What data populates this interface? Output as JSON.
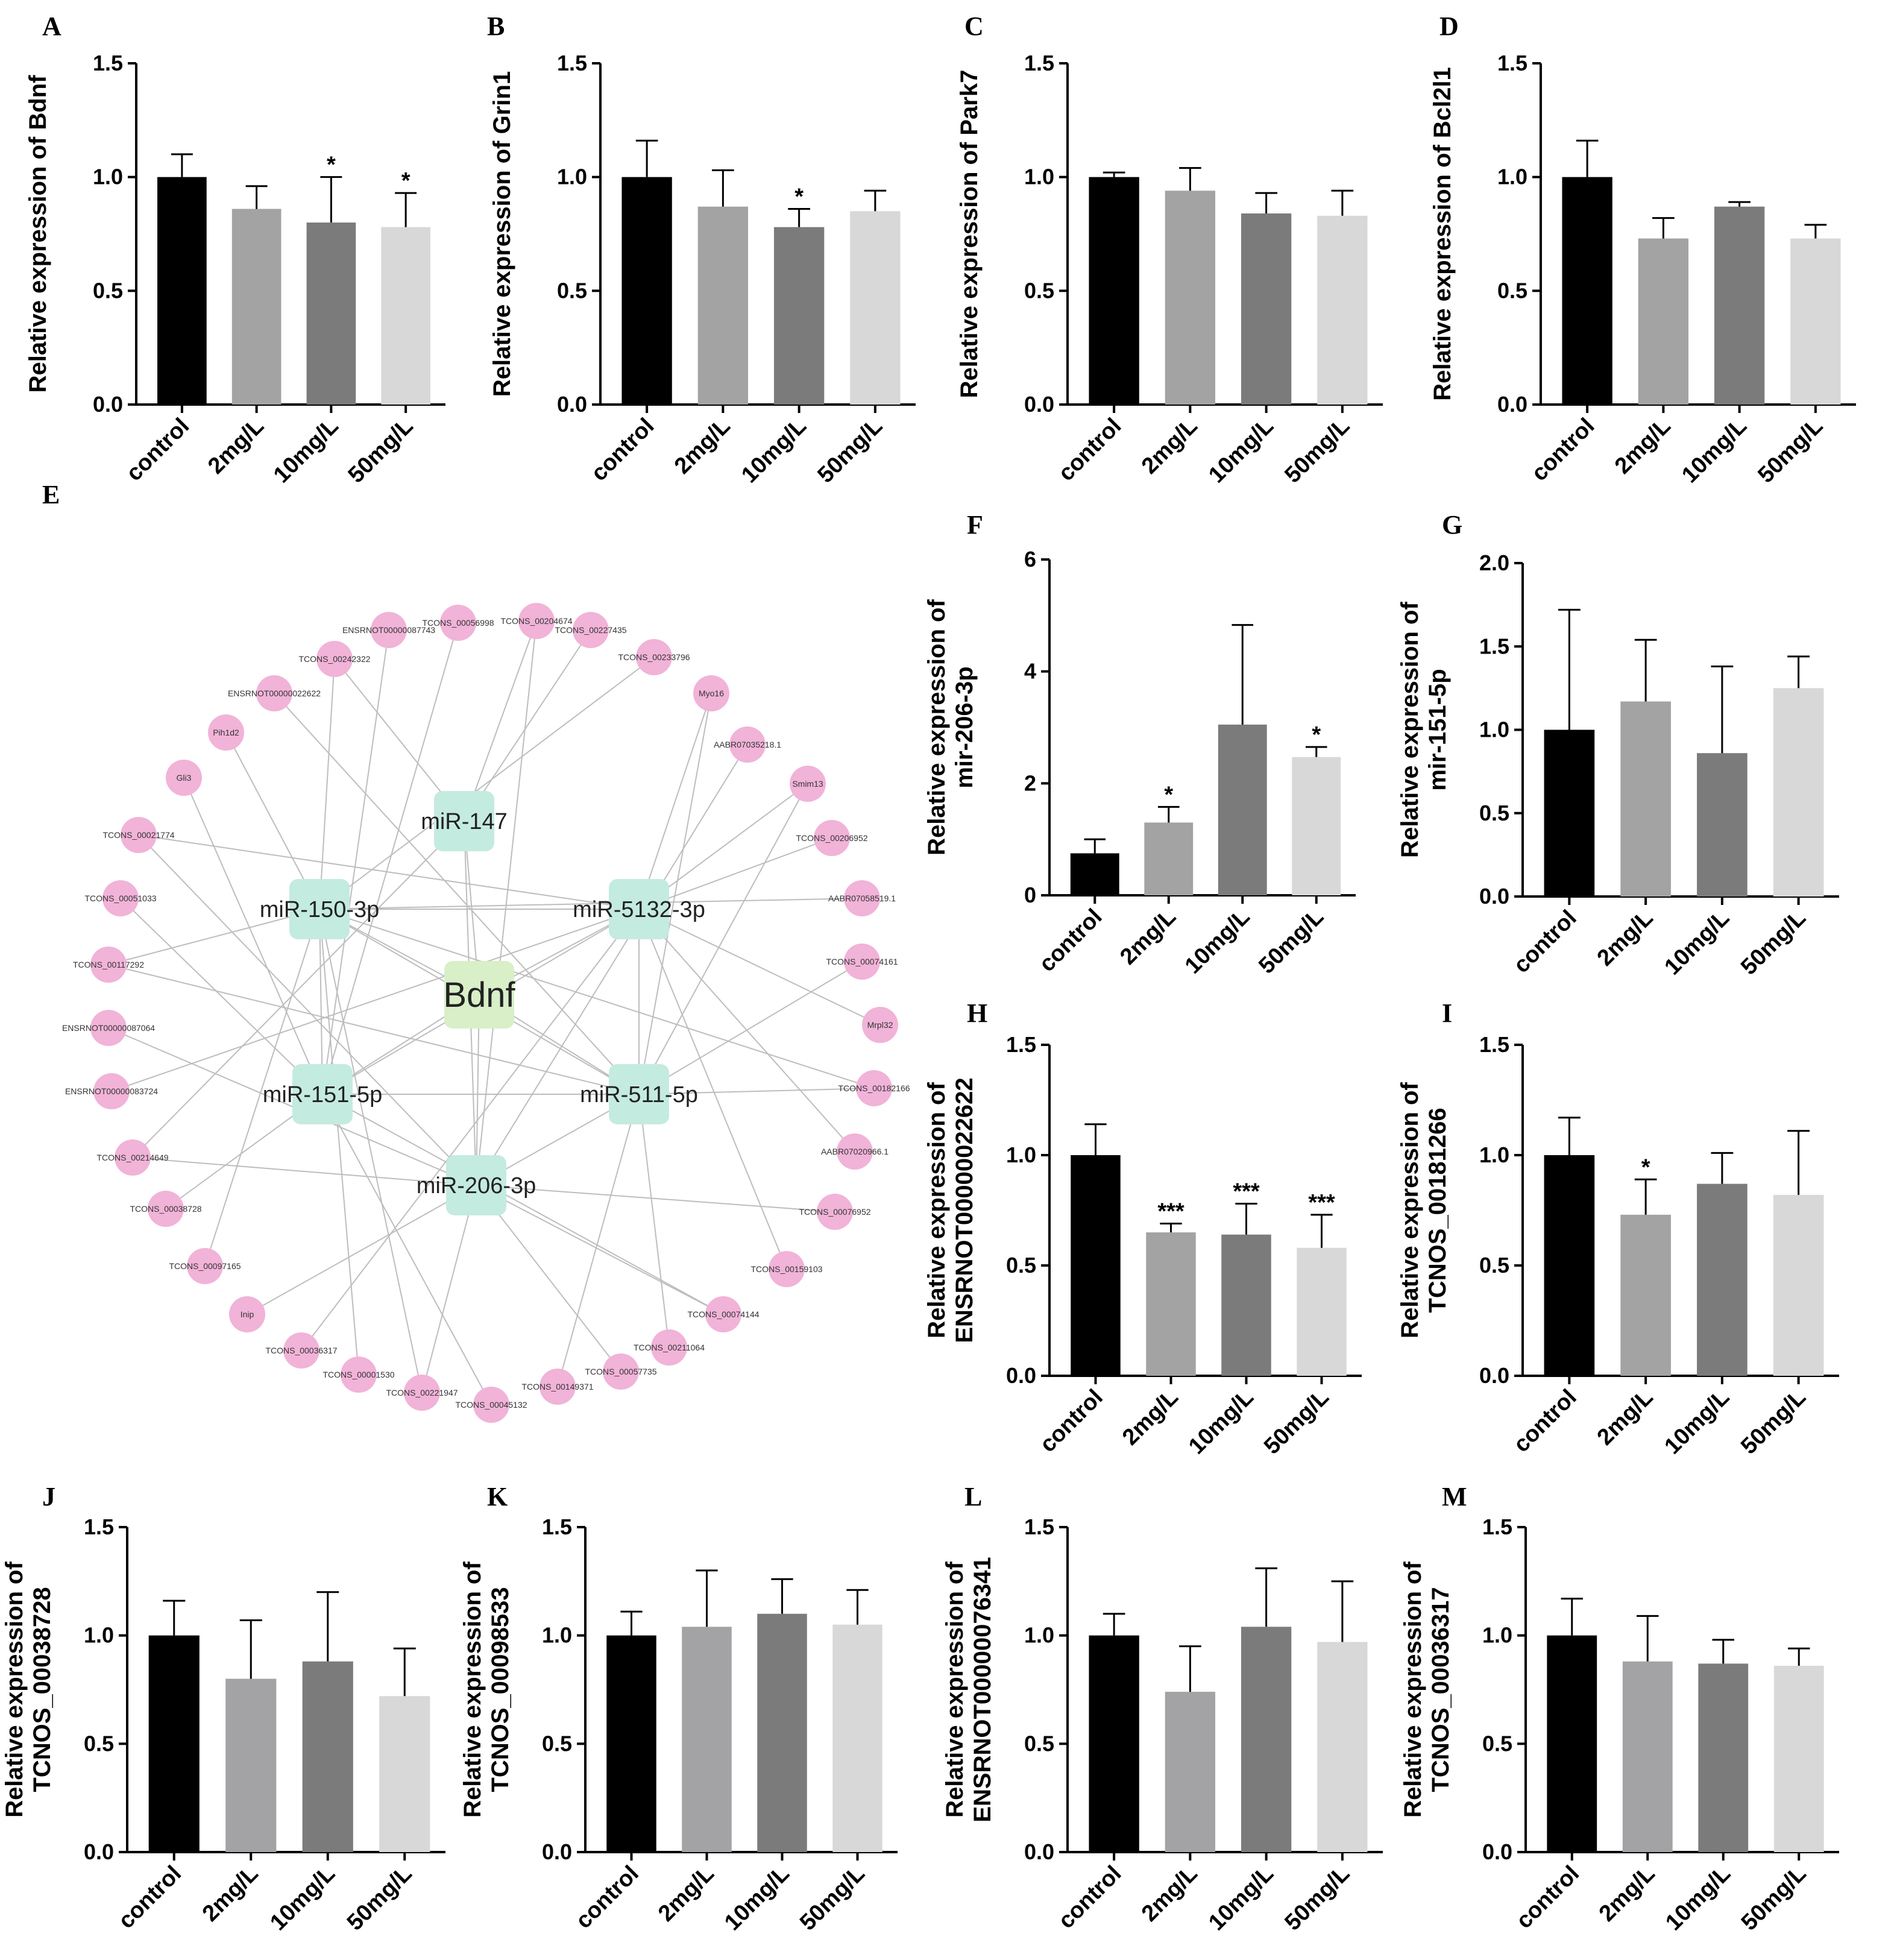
{
  "chart_data": [
    {
      "panel": "A",
      "type": "bar",
      "ylabel": [
        "Relative expression of Bdnf"
      ],
      "categories": [
        "control",
        "2mg/L",
        "10mg/L",
        "50mg/L"
      ],
      "values": [
        1.0,
        0.86,
        0.8,
        0.78
      ],
      "errors": [
        0.1,
        0.1,
        0.2,
        0.15
      ],
      "significance": [
        "",
        "",
        "*",
        "*"
      ],
      "ylim": [
        0,
        1.5
      ],
      "yticks": [
        "0.0",
        "0.5",
        "1.0",
        "1.5"
      ],
      "colors": [
        "#000000",
        "#a3a3a3",
        "#7b7b7b",
        "#d8d8d8"
      ]
    },
    {
      "panel": "B",
      "type": "bar",
      "ylabel": [
        "Relative expression of Grin1"
      ],
      "categories": [
        "control",
        "2mg/L",
        "10mg/L",
        "50mg/L"
      ],
      "values": [
        1.0,
        0.87,
        0.78,
        0.85
      ],
      "errors": [
        0.16,
        0.16,
        0.08,
        0.09
      ],
      "significance": [
        "",
        "",
        "*",
        ""
      ],
      "ylim": [
        0,
        1.5
      ],
      "yticks": [
        "0.0",
        "0.5",
        "1.0",
        "1.5"
      ],
      "colors": [
        "#000000",
        "#a3a3a3",
        "#7b7b7b",
        "#d8d8d8"
      ]
    },
    {
      "panel": "C",
      "type": "bar",
      "ylabel": [
        "Relative expression of Park7"
      ],
      "categories": [
        "control",
        "2mg/L",
        "10mg/L",
        "50mg/L"
      ],
      "values": [
        1.0,
        0.94,
        0.84,
        0.83
      ],
      "errors": [
        0.02,
        0.1,
        0.09,
        0.11
      ],
      "significance": [
        "",
        "",
        "",
        ""
      ],
      "ylim": [
        0,
        1.5
      ],
      "yticks": [
        "0.0",
        "0.5",
        "1.0",
        "1.5"
      ],
      "colors": [
        "#000000",
        "#a3a3a3",
        "#7b7b7b",
        "#d8d8d8"
      ]
    },
    {
      "panel": "D",
      "type": "bar",
      "ylabel": [
        "Relative expression of Bcl2l1"
      ],
      "categories": [
        "control",
        "2mg/L",
        "10mg/L",
        "50mg/L"
      ],
      "values": [
        1.0,
        0.73,
        0.87,
        0.73
      ],
      "errors": [
        0.16,
        0.09,
        0.02,
        0.06
      ],
      "significance": [
        "",
        "",
        "",
        ""
      ],
      "ylim": [
        0,
        1.5
      ],
      "yticks": [
        "0.0",
        "0.5",
        "1.0",
        "1.5"
      ],
      "colors": [
        "#000000",
        "#a3a3a3",
        "#7b7b7b",
        "#d8d8d8"
      ]
    },
    {
      "panel": "F",
      "type": "bar",
      "ylabel": [
        "Relative expression of",
        "mir-206-3p"
      ],
      "categories": [
        "control",
        "2mg/L",
        "10mg/L",
        "50mg/L"
      ],
      "values": [
        0.75,
        1.3,
        3.05,
        2.47
      ],
      "errors": [
        0.25,
        0.28,
        1.78,
        0.18
      ],
      "significance": [
        "",
        "*",
        "",
        "*"
      ],
      "ylim": [
        0,
        6
      ],
      "yticks": [
        "0",
        "2",
        "4",
        "6"
      ],
      "colors": [
        "#000000",
        "#a3a3a3",
        "#7b7b7b",
        "#d8d8d8"
      ]
    },
    {
      "panel": "G",
      "type": "bar",
      "ylabel": [
        "Relative expression of",
        "mir-151-5p"
      ],
      "categories": [
        "control",
        "2mg/L",
        "10mg/L",
        "50mg/L"
      ],
      "values": [
        1.0,
        1.17,
        0.86,
        1.25
      ],
      "errors": [
        0.72,
        0.37,
        0.52,
        0.19
      ],
      "significance": [
        "",
        "",
        "",
        ""
      ],
      "ylim": [
        0,
        2.0
      ],
      "yticks": [
        "0.0",
        "0.5",
        "1.0",
        "1.5",
        "2.0"
      ],
      "colors": [
        "#000000",
        "#a3a3a3",
        "#7b7b7b",
        "#d8d8d8"
      ]
    },
    {
      "panel": "H",
      "type": "bar",
      "ylabel": [
        "Relative expression of",
        "ENSRNOT00000022622"
      ],
      "categories": [
        "control",
        "2mg/L",
        "10mg/L",
        "50mg/L"
      ],
      "values": [
        1.0,
        0.65,
        0.64,
        0.58
      ],
      "errors": [
        0.14,
        0.04,
        0.14,
        0.15
      ],
      "significance": [
        "",
        "***",
        "***",
        "***"
      ],
      "ylim": [
        0,
        1.5
      ],
      "yticks": [
        "0.0",
        "0.5",
        "1.0",
        "1.5"
      ],
      "colors": [
        "#000000",
        "#a3a3a3",
        "#7b7b7b",
        "#d8d8d8"
      ]
    },
    {
      "panel": "I",
      "type": "bar",
      "ylabel": [
        "Relative expression of",
        "TCNOS_00181266"
      ],
      "categories": [
        "control",
        "2mg/L",
        "10mg/L",
        "50mg/L"
      ],
      "values": [
        1.0,
        0.73,
        0.87,
        0.82
      ],
      "errors": [
        0.17,
        0.16,
        0.14,
        0.29
      ],
      "significance": [
        "",
        "*",
        "",
        ""
      ],
      "ylim": [
        0,
        1.5
      ],
      "yticks": [
        "0.0",
        "0.5",
        "1.0",
        "1.5"
      ],
      "colors": [
        "#000000",
        "#a3a3a3",
        "#7b7b7b",
        "#d8d8d8"
      ]
    },
    {
      "panel": "J",
      "type": "bar",
      "ylabel": [
        "Relative expression of",
        "TCNOS_00038728"
      ],
      "categories": [
        "control",
        "2mg/L",
        "10mg/L",
        "50mg/L"
      ],
      "values": [
        1.0,
        0.8,
        0.88,
        0.72
      ],
      "errors": [
        0.16,
        0.27,
        0.32,
        0.22
      ],
      "significance": [
        "",
        "",
        "",
        ""
      ],
      "ylim": [
        0,
        1.5
      ],
      "yticks": [
        "0.0",
        "0.5",
        "1.0",
        "1.5"
      ],
      "colors": [
        "#000000",
        "#a3a3a6",
        "#7b7b7b",
        "#d8d8d8"
      ]
    },
    {
      "panel": "K",
      "type": "bar",
      "ylabel": [
        "Relative expression of",
        "TCNOS_00098533"
      ],
      "categories": [
        "control",
        "2mg/L",
        "10mg/L",
        "50mg/L"
      ],
      "values": [
        1.0,
        1.04,
        1.1,
        1.05
      ],
      "errors": [
        0.11,
        0.26,
        0.16,
        0.16
      ],
      "significance": [
        "",
        "",
        "",
        ""
      ],
      "ylim": [
        0,
        1.5
      ],
      "yticks": [
        "0.0",
        "0.5",
        "1.0",
        "1.5"
      ],
      "colors": [
        "#000000",
        "#a3a3a6",
        "#7b7b7b",
        "#d8d8d8"
      ]
    },
    {
      "panel": "L",
      "type": "bar",
      "ylabel": [
        "Relative expression of",
        "ENSRNOT00000076341"
      ],
      "categories": [
        "control",
        "2mg/L",
        "10mg/L",
        "50mg/L"
      ],
      "values": [
        1.0,
        0.74,
        1.04,
        0.97
      ],
      "errors": [
        0.1,
        0.21,
        0.27,
        0.28
      ],
      "significance": [
        "",
        "",
        "",
        ""
      ],
      "ylim": [
        0,
        1.5
      ],
      "yticks": [
        "0.0",
        "0.5",
        "1.0",
        "1.5"
      ],
      "colors": [
        "#000000",
        "#a3a3a6",
        "#7b7b7b",
        "#d8d8d8"
      ]
    },
    {
      "panel": "M",
      "type": "bar",
      "ylabel": [
        "Relative expression of",
        "TCNOS_00036317"
      ],
      "categories": [
        "control",
        "2mg/L",
        "10mg/L",
        "50mg/L"
      ],
      "values": [
        1.0,
        0.88,
        0.87,
        0.86
      ],
      "errors": [
        0.17,
        0.21,
        0.11,
        0.08
      ],
      "significance": [
        "",
        "",
        "",
        ""
      ],
      "ylim": [
        0,
        1.5
      ],
      "yticks": [
        "0.0",
        "0.5",
        "1.0",
        "1.5"
      ],
      "colors": [
        "#000000",
        "#a3a3a6",
        "#7b7b7b",
        "#d8d8d8"
      ]
    }
  ],
  "network": {
    "panel": "E",
    "hub": "Bdnf",
    "mirnas": [
      "miR-147",
      "miR-150-3p",
      "miR-5132-3p",
      "miR-151-5p",
      "miR-511-5p",
      "miR-206-3p"
    ],
    "targets": [
      "TCONS_00204674",
      "TCONS_00227435",
      "TCONS_00233796",
      "Myo16",
      "AABR07035218.1",
      "Smim13",
      "TCONS_00206952",
      "AABR07058519.1",
      "TCONS_00074161",
      "Mrpl32",
      "TCONS_00182166",
      "AABR07020966.1",
      "TCONS_00076952",
      "TCONS_00159103",
      "TCONS_00074144",
      "TCONS_00211064",
      "TCONS_00057735",
      "TCONS_00149371",
      "TCONS_00045132",
      "TCONS_00221947",
      "TCONS_00001530",
      "TCONS_00036317",
      "Inip",
      "TCONS_00097165",
      "TCONS_00038728",
      "TCONS_00214649",
      "ENSRNOT00000083724",
      "ENSRNOT00000087064",
      "TCONS_00117292",
      "TCONS_00051033",
      "TCONS_00021774",
      "Gli3",
      "Pih1d2",
      "ENSRNOT00000022622",
      "TCONS_00242322",
      "ENSRNOT00000087743",
      "TCONS_00056998"
    ],
    "colors": {
      "target": "#f1b3d8",
      "mirna": "#c4ebe0",
      "hub": "#d8efc8",
      "edge": "#bdbdbd"
    }
  }
}
